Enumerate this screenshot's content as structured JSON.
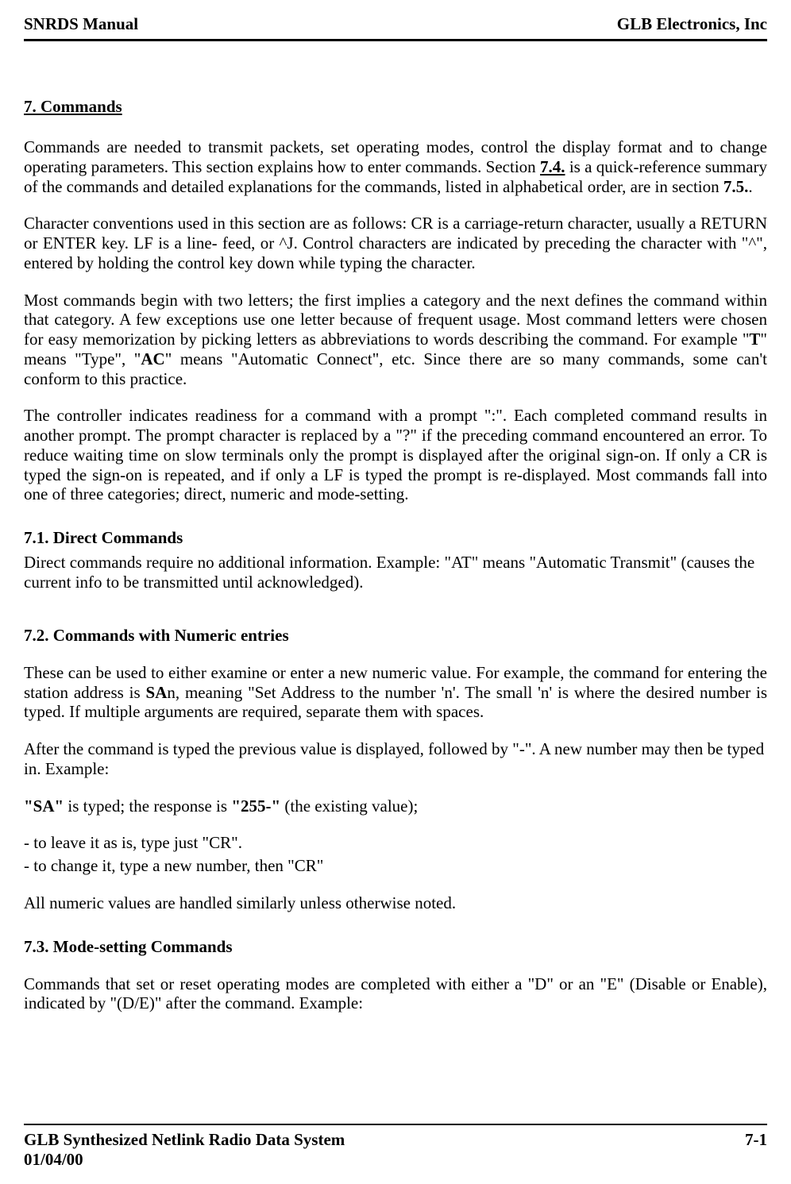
{
  "header": {
    "left": "SNRDS  Manual",
    "right": "GLB Electronics, Inc"
  },
  "chapter": {
    "title": "7. Commands"
  },
  "para1_html": "Commands are needed to transmit packets, set operating modes, control the display format and to change operating parameters. This section explains how to enter commands. Section <b><u>7.4.</u></b> is a quick-reference summary of the commands and detailed explanations for the commands, listed in alphabetical order, are in section <b>7.5.</b>.",
  "para2": "Character conventions used in this section are as follows: CR is a carriage-return character, usually a RETURN or ENTER key. LF is a line- feed, or ^J. Control characters are indicated by preceding the character with \"^\", entered by holding the control key down while typing the character.",
  "para3_html": "Most commands begin with two letters; the first implies a category and the next defines the command within that category. A few exceptions use one letter because of frequent usage. Most command letters were chosen for easy memorization by picking letters as abbreviations to words describing the command. For example \"<b>T</b>\" means \"Type\", \"<b>AC</b>\" means \"Automatic Connect\", etc. Since there are so many commands, some can't conform to this practice.",
  "para4": "The controller indicates readiness for a command with a prompt \":\". Each completed command results in another prompt. The prompt character is replaced by a \"?\" if the preceding command encountered an error. To reduce waiting time on slow terminals only the prompt is displayed after the original sign-on. If only a CR is typed the sign-on is repeated, and if only a LF is typed the prompt is re-displayed. Most commands fall into one of three categories; direct, numeric and mode-setting.",
  "sec71": {
    "title": "7.1. Direct Commands",
    "body": "Direct commands require no additional information. Example: \"AT\" means \"Automatic Transmit\" (causes the current info to be transmitted until acknowledged)."
  },
  "sec72": {
    "title": "7.2. Commands with Numeric entries",
    "p1_html": "These can be used to either examine or enter a new numeric value. For example, the command for entering the station address is <b>SA</b>n, meaning \"Set Address to the number 'n'. The small 'n' is where the desired number is typed. If multiple arguments are required, separate them with spaces.",
    "p2": "After the command is typed the previous value is displayed, followed by \"-\". A new number may then be typed in. Example:",
    "p3_html": "<b>\"SA\"</b> is typed; the response is <b>\"255-\"</b> (the existing value);",
    "line1": "- to leave it as is, type just \"CR\".",
    "line2": "- to change it, type a new number, then \"CR\"",
    "p4": "All numeric values are handled similarly unless otherwise noted."
  },
  "sec73": {
    "title": "7.3. Mode-setting Commands",
    "p1": "Commands that set or reset operating modes are completed with either a \"D\" or an \"E\" (Disable or Enable), indicated by \"(D/E)\" after the command. Example:"
  },
  "footer": {
    "left": "GLB Synthesized Netlink Radio Data System",
    "right": "7-1",
    "date": "01/04/00"
  }
}
